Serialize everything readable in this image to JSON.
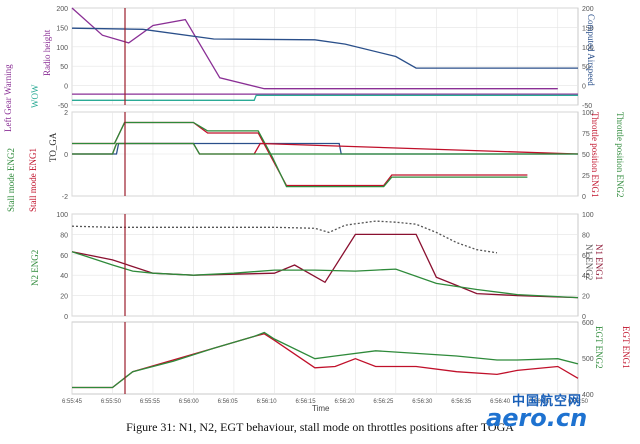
{
  "caption": "Figure 31: N1, N2, EGT behaviour, stall mode on throttles positions after TOGA",
  "watermark": {
    "cn": "中国航空网",
    "en": "aero.cn"
  },
  "colors": {
    "purple": "#8a2f95",
    "blue": "#2a4f8a",
    "teal": "#2aaa95",
    "red": "#c0102a",
    "darkred": "#8a1030",
    "green": "#2e8a3a",
    "black": "#222222",
    "grid": "#e4e4e4",
    "cursor": "#9b1c2a"
  },
  "chart_data": [
    {
      "type": "line",
      "x_axis": {
        "label": "Time",
        "ticks": [
          "6:55:45",
          "6:55:50",
          "6:55:55",
          "6:56:00",
          "6:56:05",
          "6:56:10",
          "6:56:15",
          "6:56:20",
          "6:56:25",
          "6:56:30",
          "6:56:35",
          "6:56:40",
          "6:56:45",
          "6:56:50"
        ]
      },
      "left_axes": [
        {
          "label": "Radio height",
          "ticks": [
            "200",
            "150",
            "100",
            "50",
            "0",
            "-50"
          ]
        },
        {
          "label": "WOW",
          "ticks": []
        },
        {
          "label": "Left Gear Warning",
          "ticks": []
        }
      ],
      "right_axes": [
        {
          "label": "Computed Airspeed",
          "ticks": [
            "200",
            "150",
            "100",
            "50",
            "0",
            "-50"
          ]
        }
      ],
      "series": [
        {
          "name": "Radio height",
          "color": "#8a2f95",
          "x": [
            0,
            1.5,
            2.8,
            4,
            5.6,
            7.3,
            9.5,
            11,
            16,
            22,
            24
          ],
          "y": [
            200,
            130,
            110,
            155,
            170,
            20,
            -8,
            -8,
            -8,
            -8,
            -8
          ]
        },
        {
          "name": "Computed Airspeed",
          "color": "#2a4f8a",
          "x": [
            0,
            3.5,
            7,
            12,
            13.5,
            16,
            17,
            25
          ],
          "y": [
            148,
            145,
            120,
            118,
            107,
            75,
            45,
            45
          ]
        },
        {
          "name": "Left Gear Warning",
          "color": "#8a2f95",
          "x": [
            0,
            25
          ],
          "y": [
            -22,
            -22
          ]
        },
        {
          "name": "WOW",
          "color": "#2aaa95",
          "x": [
            0,
            9,
            9.1,
            25
          ],
          "y": [
            -38,
            -38,
            -25,
            -25
          ]
        }
      ]
    },
    {
      "type": "line",
      "left_axes": [
        {
          "label": "TO_GA",
          "ticks": [
            "2",
            "0",
            "-2"
          ]
        },
        {
          "label": "Stall mode ENG1",
          "ticks": []
        },
        {
          "label": "Stall mode ENG2",
          "ticks": []
        }
      ],
      "right_axes": [
        {
          "label": "Throttle position ENG1",
          "ticks": [
            "100",
            "75",
            "50",
            "25",
            "0"
          ]
        },
        {
          "label": "Throttle position ENG2",
          "ticks": [
            "100",
            "75",
            "50",
            "25",
            "0"
          ]
        }
      ],
      "series": [
        {
          "name": "TO_GA",
          "color": "#2a4f8a",
          "x": [
            0,
            2.2,
            2.3,
            13.2,
            13.3,
            25
          ],
          "y": [
            0,
            0,
            1,
            1,
            0,
            0
          ]
        },
        {
          "name": "Throttle position ENG1",
          "color": "#c0102a",
          "x": [
            0,
            2.1,
            2.6,
            6,
            6.7,
            9.2,
            9.9,
            10.6,
            15.4,
            15.8,
            22.5
          ],
          "y": [
            1,
            1,
            3,
            3,
            2,
            2,
            -0.5,
            -3,
            -3,
            -2,
            -2
          ]
        },
        {
          "name": "Throttle position ENG2",
          "color": "#2e8a3a",
          "x": [
            0,
            2.1,
            2.6,
            6,
            6.7,
            9.2,
            9.9,
            10.6,
            15.4,
            15.8,
            22.5
          ],
          "y": [
            1,
            1,
            3,
            3,
            2.2,
            2.2,
            -0.3,
            -3.1,
            -3.1,
            -2.2,
            -2.2
          ]
        },
        {
          "name": "Stall mode ENG1",
          "color": "#c0102a",
          "x": [
            0,
            2,
            2.2,
            6,
            6.3,
            9,
            9.3,
            25
          ],
          "y": [
            0,
            0,
            1,
            1,
            0,
            0,
            1,
            0
          ]
        },
        {
          "name": "Stall mode ENG2",
          "color": "#2e8a3a",
          "x": [
            0,
            2,
            2.2,
            6,
            6.3,
            25
          ],
          "y": [
            0,
            0,
            1,
            1,
            0,
            0
          ]
        }
      ]
    },
    {
      "type": "line",
      "left_axes": [
        {
          "label": "N2 ENG2",
          "ticks": [
            "100",
            "80",
            "60",
            "40",
            "20",
            "0"
          ]
        }
      ],
      "right_axes": [
        {
          "label": "N1 ENG1",
          "ticks": [
            "100",
            "80",
            "60",
            "40",
            "20",
            "0"
          ]
        },
        {
          "label": "N1 ENG2",
          "ticks": []
        }
      ],
      "series": [
        {
          "name": "N1 ENG1",
          "color": "#8a1030",
          "x": [
            0,
            2,
            4,
            6,
            8,
            10,
            11,
            12.5,
            14,
            15.5,
            17,
            18,
            19,
            20,
            22,
            25
          ],
          "y": [
            63,
            55,
            42,
            40,
            41,
            42,
            50,
            33,
            80,
            80,
            80,
            38,
            30,
            22,
            20,
            18
          ]
        },
        {
          "name": "N2 ENG2",
          "color": "#2e8a3a",
          "x": [
            0,
            2,
            3,
            4,
            6,
            8,
            10,
            12,
            14,
            15,
            16,
            18,
            20,
            22,
            25
          ],
          "y": [
            63,
            50,
            44,
            42,
            40,
            42,
            45,
            45,
            44,
            45,
            46,
            32,
            26,
            21,
            18
          ]
        },
        {
          "name": "N1 ENG2",
          "color": "#555555",
          "x": [
            0,
            2,
            4,
            6,
            8,
            10,
            12,
            12.7,
            13.5,
            15,
            16,
            17,
            18,
            19,
            20,
            21
          ],
          "y": [
            88,
            87,
            87,
            87,
            87,
            87,
            86,
            82,
            89,
            93,
            92,
            90,
            82,
            72,
            65,
            62
          ]
        }
      ]
    },
    {
      "type": "line",
      "right_axes": [
        {
          "label": "EGT ENG2",
          "ticks": [
            "600",
            "500",
            "400"
          ]
        },
        {
          "label": "EGT ENG1",
          "ticks": [
            "1000",
            "800",
            "600",
            "400"
          ]
        }
      ],
      "series": [
        {
          "name": "EGT ENG1",
          "color": "#c0102a",
          "x": [
            0,
            2,
            3,
            5,
            7,
            9,
            9.5,
            10,
            12,
            13,
            14,
            15,
            17,
            19,
            21,
            22,
            24,
            25
          ],
          "y": [
            400,
            400,
            520,
            610,
            700,
            790,
            810,
            760,
            550,
            560,
            620,
            560,
            560,
            520,
            500,
            530,
            560,
            470
          ]
        },
        {
          "name": "EGT ENG2",
          "color": "#2e8a3a",
          "x": [
            0,
            2,
            3,
            5,
            7,
            9,
            9.5,
            10,
            12,
            13,
            15,
            17,
            19,
            21,
            22,
            24,
            25
          ],
          "y": [
            400,
            400,
            520,
            600,
            700,
            790,
            820,
            770,
            620,
            640,
            680,
            660,
            640,
            610,
            610,
            620,
            580
          ]
        }
      ]
    }
  ]
}
